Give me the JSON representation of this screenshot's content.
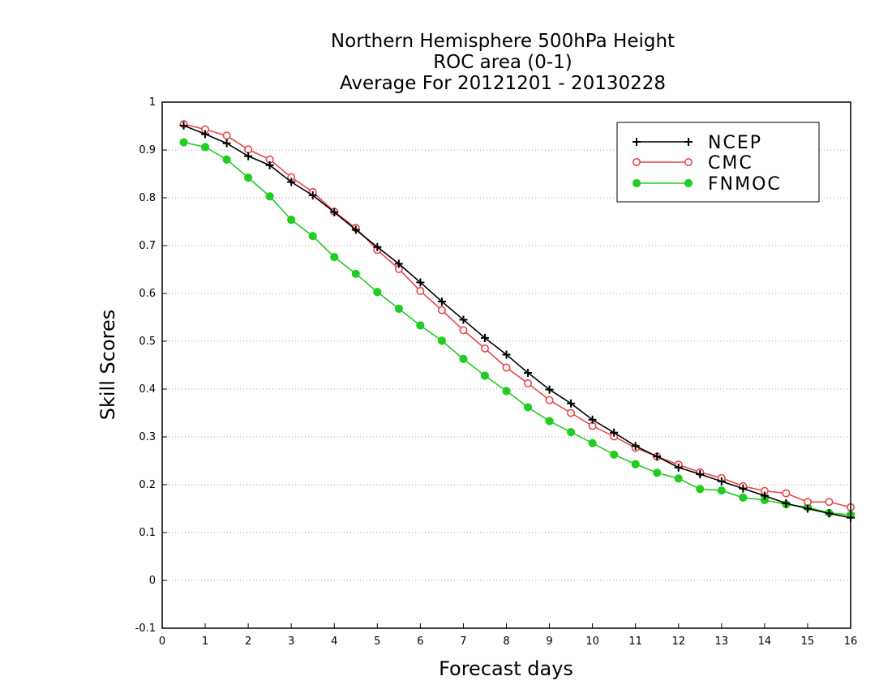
{
  "chart_data": {
    "type": "line",
    "title": [
      "Northern Hemisphere 500hPa Height",
      "ROC area (0-1)",
      "Average For 20121201 - 20130228"
    ],
    "xlabel": "Forecast days",
    "ylabel": "Skill Scores",
    "xlim": [
      0,
      16
    ],
    "ylim": [
      -0.1,
      1
    ],
    "xticks": [
      "0",
      "1",
      "2",
      "3",
      "4",
      "5",
      "6",
      "7",
      "8",
      "9",
      "10",
      "11",
      "12",
      "13",
      "14",
      "15",
      "16"
    ],
    "yticks": [
      "-0.1",
      "0",
      "0.1",
      "0.2",
      "0.3",
      "0.4",
      "0.5",
      "0.6",
      "0.7",
      "0.8",
      "0.9",
      "1"
    ],
    "grid": "horizontal-dotted",
    "legend_position": "top-right",
    "x": [
      0.5,
      1,
      1.5,
      2,
      2.5,
      3,
      3.5,
      4,
      4.5,
      5,
      5.5,
      6,
      6.5,
      7,
      7.5,
      8,
      8.5,
      9,
      9.5,
      10,
      10.5,
      11,
      11.5,
      12,
      12.5,
      13,
      13.5,
      14,
      14.5,
      15,
      15.5,
      16
    ],
    "series": [
      {
        "name": "NCEP",
        "color": "#000000",
        "marker": "plus",
        "values": [
          0.951,
          0.933,
          0.914,
          0.887,
          0.868,
          0.833,
          0.805,
          0.77,
          0.733,
          0.697,
          0.662,
          0.623,
          0.583,
          0.545,
          0.507,
          0.472,
          0.434,
          0.399,
          0.37,
          0.336,
          0.309,
          0.281,
          0.259,
          0.236,
          0.222,
          0.207,
          0.192,
          0.177,
          0.161,
          0.15,
          0.14,
          0.131
        ]
      },
      {
        "name": "CMC",
        "color": "#e8454a",
        "marker": "open-circle",
        "values": [
          0.954,
          0.943,
          0.93,
          0.901,
          0.88,
          0.843,
          0.812,
          0.771,
          0.737,
          0.691,
          0.651,
          0.605,
          0.565,
          0.523,
          0.485,
          0.445,
          0.412,
          0.377,
          0.35,
          0.323,
          0.301,
          0.277,
          0.259,
          0.242,
          0.226,
          0.214,
          0.197,
          0.187,
          0.182,
          0.164,
          0.164,
          0.153
        ]
      },
      {
        "name": "FNMOC",
        "color": "#22cc22",
        "marker": "filled-circle",
        "values": [
          0.916,
          0.906,
          0.88,
          0.842,
          0.803,
          0.754,
          0.72,
          0.676,
          0.641,
          0.603,
          0.568,
          0.533,
          0.501,
          0.463,
          0.428,
          0.396,
          0.362,
          0.333,
          0.31,
          0.287,
          0.263,
          0.243,
          0.225,
          0.213,
          0.191,
          0.188,
          0.173,
          0.168,
          0.159,
          0.153,
          0.141,
          0.137
        ]
      }
    ]
  }
}
